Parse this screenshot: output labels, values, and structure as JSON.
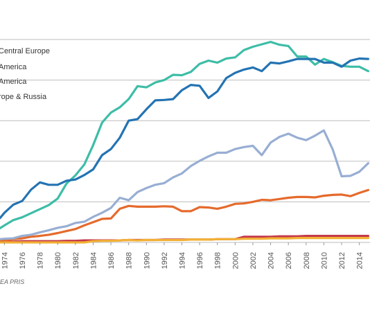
{
  "chart_data": {
    "type": "line",
    "title": "",
    "xlabel": "",
    "ylabel": "",
    "xlim": [
      1973.5,
      2015.2
    ],
    "ylim": [
      0,
      50
    ],
    "grid": "horizontal",
    "x_tick_labels": [
      "1974",
      "1976",
      "1978",
      "1980",
      "1982",
      "1984",
      "1986",
      "1988",
      "1990",
      "1992",
      "1994",
      "1996",
      "1998",
      "2000",
      "2002",
      "2004",
      "2006",
      "2008",
      "2010",
      "2012",
      "2014"
    ],
    "x_tick_values": [
      1974,
      1976,
      1978,
      1980,
      1982,
      1984,
      1986,
      1988,
      1990,
      1992,
      1994,
      1996,
      1998,
      2000,
      2002,
      2004,
      2006,
      2008,
      2010,
      2012,
      2014
    ],
    "y_grid_values": [
      10,
      20,
      30,
      40,
      50
    ],
    "legend_position": "top-left",
    "legend": [
      {
        "label": "Central Europe",
        "color": "#3dbda7"
      },
      {
        "label": "America",
        "color": "#2373b3"
      },
      {
        "label": "America",
        "color": "#98aed3"
      },
      {
        "label": "rope & Russia",
        "color": "#e56a2c"
      }
    ],
    "x": [
      1973.5,
      1974,
      1975,
      1976,
      1977,
      1978,
      1979,
      1980,
      1981,
      1982,
      1983,
      1984,
      1985,
      1986,
      1987,
      1988,
      1989,
      1990,
      1991,
      1992,
      1993,
      1994,
      1995,
      1996,
      1997,
      1998,
      1999,
      2000,
      2001,
      2002,
      2003,
      2004,
      2005,
      2006,
      2007,
      2008,
      2009,
      2010,
      2011,
      2012,
      2013,
      2014,
      2015
    ],
    "series": [
      {
        "color": "#3dbda7",
        "values": [
          3.5,
          4.2,
          5.5,
          6.2,
          7.2,
          8.2,
          9.2,
          10.8,
          14.5,
          16.5,
          19.2,
          24.0,
          29.5,
          32.0,
          33.3,
          35.3,
          38.5,
          38.2,
          39.4,
          40.0,
          41.3,
          41.2,
          42.0,
          44.0,
          44.8,
          44.3,
          45.3,
          45.6,
          47.4,
          48.2,
          48.8,
          49.4,
          48.7,
          48.4,
          45.8,
          45.8,
          43.8,
          45.2,
          44.4,
          43.5,
          43.3,
          43.3,
          42.2
        ]
      },
      {
        "color": "#2373b3",
        "values": [
          6.0,
          7.3,
          9.3,
          10.2,
          13.0,
          14.8,
          14.2,
          14.2,
          15.2,
          15.5,
          16.6,
          18.0,
          21.5,
          23.0,
          25.8,
          30.0,
          30.4,
          32.8,
          35.0,
          35.1,
          35.3,
          37.5,
          38.8,
          38.6,
          35.6,
          37.2,
          40.5,
          41.8,
          42.6,
          43.1,
          42.2,
          44.3,
          44.1,
          44.6,
          45.2,
          45.2,
          45.2,
          44.3,
          44.3,
          43.3,
          44.8,
          45.3,
          45.2
        ]
      },
      {
        "color": "#98aed3",
        "values": [
          0.8,
          0.9,
          1.0,
          1.6,
          1.9,
          2.5,
          3.0,
          3.6,
          4.0,
          4.8,
          5.1,
          6.3,
          7.3,
          8.5,
          11.0,
          10.4,
          12.4,
          13.4,
          14.2,
          14.6,
          16.0,
          17.0,
          18.8,
          20.1,
          21.2,
          22.1,
          22.1,
          23.0,
          23.5,
          23.8,
          21.5,
          24.6,
          26.0,
          26.8,
          25.8,
          25.2,
          26.3,
          27.6,
          22.9,
          16.3,
          16.4,
          17.4,
          19.5
        ]
      },
      {
        "color": "#e56a2c",
        "values": [
          0.5,
          0.5,
          0.8,
          1.0,
          1.4,
          1.6,
          1.9,
          2.3,
          2.8,
          3.3,
          4.2,
          5.0,
          5.8,
          5.9,
          8.3,
          9.0,
          8.8,
          8.8,
          8.8,
          8.9,
          8.8,
          7.7,
          7.7,
          8.7,
          8.6,
          8.3,
          8.8,
          9.5,
          9.6,
          10.0,
          10.5,
          10.4,
          10.7,
          11.0,
          11.2,
          11.2,
          11.1,
          11.5,
          11.7,
          11.8,
          11.4,
          12.2,
          12.9
        ]
      },
      {
        "color": "#f2b134",
        "values": [
          0.0,
          0.0,
          0.0,
          0.0,
          0.0,
          0.0,
          0.0,
          0.0,
          0.0,
          0.0,
          0.0,
          0.3,
          0.4,
          0.4,
          0.5,
          0.6,
          0.5,
          0.6,
          0.6,
          0.6,
          0.6,
          0.6,
          0.7,
          0.7,
          0.7,
          0.8,
          0.8,
          0.8,
          0.9,
          0.9,
          0.9,
          1.0,
          1.0,
          1.0,
          1.1,
          1.1,
          1.1,
          1.1,
          1.1,
          1.1,
          1.1,
          1.1,
          1.1
        ]
      },
      {
        "color": "#c4384b",
        "values": [
          0.2,
          0.2,
          0.2,
          0.3,
          0.3,
          0.3,
          0.3,
          0.3,
          0.4,
          0.4,
          0.5,
          0.5,
          0.5,
          0.5,
          0.5,
          0.6,
          0.6,
          0.6,
          0.6,
          0.7,
          0.7,
          0.7,
          0.7,
          0.7,
          0.7,
          0.8,
          0.8,
          0.8,
          1.4,
          1.4,
          1.4,
          1.4,
          1.5,
          1.5,
          1.5,
          1.6,
          1.6,
          1.6,
          1.6,
          1.6,
          1.6,
          1.6,
          1.6
        ]
      }
    ],
    "source": "EA PRIS"
  }
}
